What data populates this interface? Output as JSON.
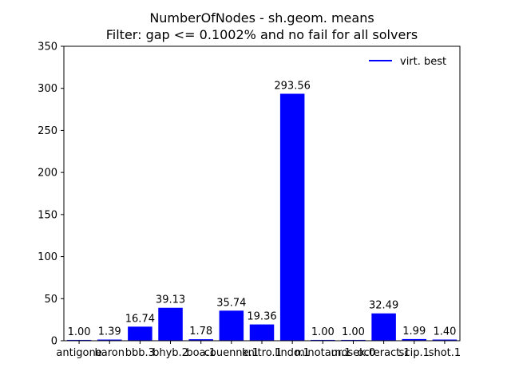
{
  "chart_data": {
    "type": "bar",
    "title": "NumberOfNodes - sh.geom. means",
    "subtitle": "Filter: gap <= 0.1002% and no fail for all solvers",
    "xlabel": "",
    "ylabel": "",
    "ylim": [
      0,
      350
    ],
    "yticks": [
      0,
      50,
      100,
      150,
      200,
      250,
      300,
      350
    ],
    "grid": false,
    "legend_position": "top-right",
    "categories": [
      "antigone",
      "baron",
      "bbb.3",
      "bhyb.2",
      "boa.1",
      "couenne.1",
      "knitro.1",
      "lindo.1",
      "minotaur.1",
      "mosek.0",
      "octeract.1",
      "scip.1",
      "shot.1"
    ],
    "tick_labels": [
      "antigone",
      "baron",
      "bbb.3",
      "bhyb.2",
      "boa.1",
      "couenne.1",
      "knitro.1",
      "lindo.1",
      "minotaur.1",
      "mosek.0",
      "octeract.1",
      "scip.1",
      "shot.1"
    ],
    "series": [
      {
        "name": "virt. best",
        "values": [
          1.0,
          1.39,
          16.74,
          39.13,
          1.78,
          35.74,
          19.36,
          293.56,
          1.0,
          1.0,
          32.49,
          1.99,
          1.4
        ],
        "value_labels": [
          "1.00",
          "1.39",
          "16.74",
          "39.13",
          "1.78",
          "35.74",
          "19.36",
          "293.56",
          "1.00",
          "1.00",
          "32.49",
          "1.99",
          "1.40"
        ],
        "color": "#0000ff"
      }
    ]
  }
}
